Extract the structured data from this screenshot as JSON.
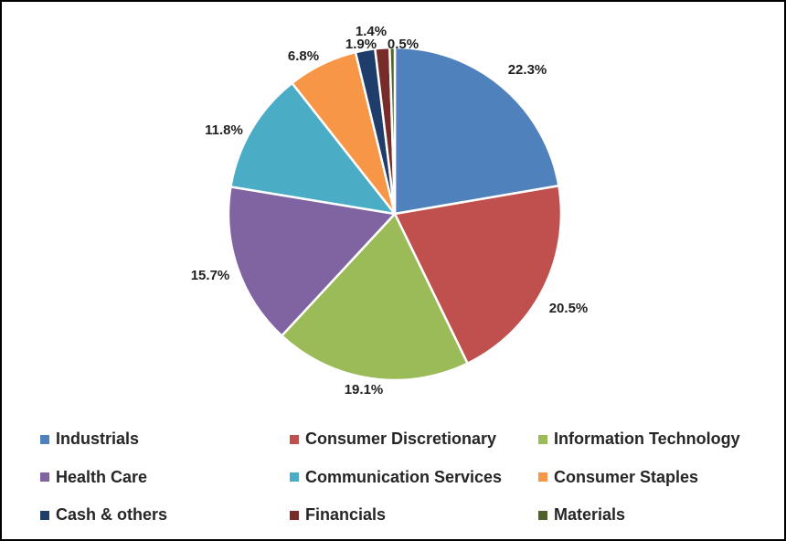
{
  "chart_data": {
    "type": "pie",
    "title": "",
    "slices": [
      {
        "label": "Industrials",
        "value": 22.3,
        "display": "22.3%",
        "color": "#4F81BD"
      },
      {
        "label": "Consumer Discretionary",
        "value": 20.5,
        "display": "20.5%",
        "color": "#C0504D"
      },
      {
        "label": "Information Technology",
        "value": 19.1,
        "display": "19.1%",
        "color": "#9BBB59"
      },
      {
        "label": "Health Care",
        "value": 15.7,
        "display": "15.7%",
        "color": "#8064A2"
      },
      {
        "label": "Communication Services",
        "value": 11.8,
        "display": "11.8%",
        "color": "#4BACC6"
      },
      {
        "label": "Consumer Staples",
        "value": 6.8,
        "display": "6.8%",
        "color": "#F79646"
      },
      {
        "label": "Cash & others",
        "value": 1.9,
        "display": "1.9%",
        "color": "#1F3D6B"
      },
      {
        "label": "Financials",
        "value": 1.4,
        "display": "1.4%",
        "color": "#772C2A"
      },
      {
        "label": "Materials",
        "value": 0.5,
        "display": "0.5%",
        "color": "#4F6228"
      }
    ],
    "start_angle": "12 o'clock",
    "direction": "clockwise",
    "legend_position": "bottom"
  }
}
